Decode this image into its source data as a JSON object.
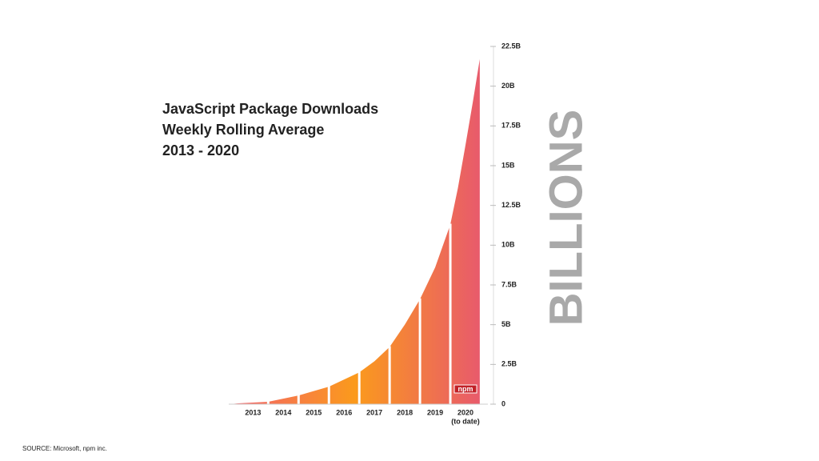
{
  "chart_data": {
    "type": "area",
    "title": [
      "JavaScript Package Downloads",
      "Weekly Rolling Average",
      "2013 - 2020"
    ],
    "ylabel": "BILLIONS",
    "x": [
      2012.74,
      2013,
      2014,
      2015,
      2016,
      2017,
      2017.5,
      2018,
      2018.5,
      2019,
      2019.5,
      2020,
      2020.25,
      2020.5,
      2020.75,
      2020.97
    ],
    "values": [
      0,
      0.05,
      0.15,
      0.55,
      1.1,
      2.0,
      2.7,
      3.6,
      5.0,
      6.6,
      8.6,
      11.3,
      13.6,
      16.3,
      19.1,
      21.7
    ],
    "xlim": [
      2012.7,
      2021
    ],
    "xticks": [
      {
        "value": 2013.5,
        "label": "2013"
      },
      {
        "value": 2014.5,
        "label": "2014"
      },
      {
        "value": 2015.5,
        "label": "2015"
      },
      {
        "value": 2016.5,
        "label": "2016"
      },
      {
        "value": 2017.5,
        "label": "2017"
      },
      {
        "value": 2018.5,
        "label": "2018"
      },
      {
        "value": 2019.5,
        "label": "2019"
      },
      {
        "value": 2020.5,
        "label": "2020"
      }
    ],
    "x_note": "(to date)",
    "ylim": [
      0,
      22.5
    ],
    "yticks": [
      0,
      {
        "value": 2.5,
        "label": "2.5B"
      },
      {
        "value": 5,
        "label": "5B"
      },
      {
        "value": 7.5,
        "label": "7.5B"
      },
      {
        "value": 10,
        "label": "10B"
      },
      {
        "value": 12.5,
        "label": "12.5B"
      },
      {
        "value": 15,
        "label": "15B"
      },
      {
        "value": 17.5,
        "label": "17.5B"
      },
      {
        "value": 20,
        "label": "20B"
      },
      {
        "value": 22.5,
        "label": "22.5B"
      }
    ],
    "colors": [
      "#f2606e",
      "#fb9a1c",
      "#e85a6c"
    ],
    "logo": "npm",
    "source": "SOURCE: Microsoft, npm inc."
  }
}
